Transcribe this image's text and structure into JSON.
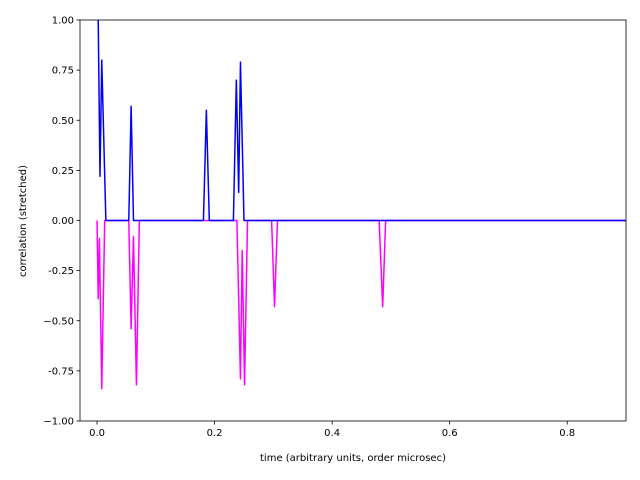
{
  "chart_data": {
    "type": "line",
    "xlabel": "time (arbitrary units, order microsec)",
    "ylabel": "correlation (stretched)",
    "xlim": [
      -0.029,
      0.9
    ],
    "ylim": [
      -1,
      1
    ],
    "xticks": [
      {
        "value": 0,
        "label": "0.0"
      },
      0.2,
      0.4,
      0.6,
      0.8
    ],
    "yticks": [
      {
        "value": -1,
        "label": "−1.00"
      },
      -0.75,
      {
        "value": -0.5,
        "label": "−0.50"
      },
      -0.25,
      {
        "value": 0,
        "label": "0.00"
      },
      0.25,
      {
        "value": 0.5,
        "label": "0.50"
      },
      0.75,
      {
        "value": 1,
        "label": "1.00"
      }
    ],
    "series": [
      {
        "color": "#ff00ff",
        "x": [
          0.0,
          0.002,
          0.004,
          0.008,
          0.013,
          0.054,
          0.058,
          0.062,
          0.067,
          0.072,
          0.238,
          0.244,
          0.247,
          0.251,
          0.256,
          0.297,
          0.302,
          0.307,
          0.48,
          0.486,
          0.491,
          0.9
        ],
        "values": [
          0,
          -0.39,
          -0.09,
          -0.84,
          0,
          0,
          -0.54,
          -0.08,
          -0.82,
          0,
          0,
          -0.79,
          -0.15,
          -0.82,
          0,
          0,
          -0.43,
          0,
          0,
          -0.43,
          0,
          0
        ]
      },
      {
        "color": "#0000ff",
        "x": [
          0.002,
          0.005,
          0.008,
          0.015,
          0.054,
          0.058,
          0.062,
          0.181,
          0.186,
          0.191,
          0.232,
          0.237,
          0.241,
          0.244,
          0.25,
          0.9
        ],
        "values": [
          1.0,
          0.22,
          0.8,
          0,
          0,
          0.57,
          0,
          0,
          0.55,
          0,
          0,
          0.7,
          0.14,
          0.79,
          0,
          0
        ]
      }
    ]
  }
}
